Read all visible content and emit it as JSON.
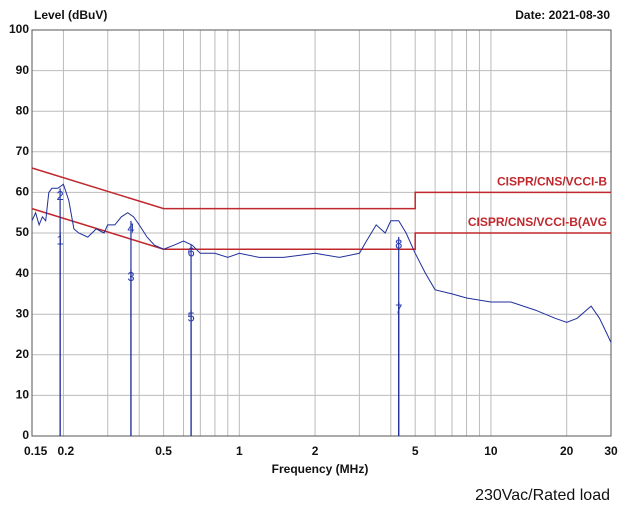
{
  "chart_data": {
    "type": "line",
    "y_label": "Level (dBuV)",
    "date": "Date: 2021-08-30",
    "x_label": "Frequency (MHz)",
    "note": "230Vac/Rated load",
    "log_x": true,
    "grid": true,
    "xlim": [
      0.15,
      30
    ],
    "ylim": [
      0,
      100
    ],
    "xticks": [
      0.15,
      0.2,
      0.5,
      1,
      2,
      5,
      10,
      20,
      30
    ],
    "xgrid": [
      0.2,
      0.3,
      0.4,
      0.5,
      0.6,
      0.7,
      0.8,
      0.9,
      1,
      2,
      3,
      4,
      5,
      6,
      7,
      8,
      9,
      10,
      20
    ],
    "yticks": [
      0,
      10,
      20,
      30,
      40,
      50,
      60,
      70,
      80,
      90,
      100
    ],
    "limits": [
      {
        "name": "CISPR/CNS/VCCI-B",
        "color": "#c0282d",
        "x": [
          0.15,
          0.5,
          5,
          5,
          30
        ],
        "values": [
          66,
          56,
          56,
          60,
          60
        ]
      },
      {
        "name": "CISPR/CNS/VCCI-B(AVG",
        "color": "#c0282d",
        "x": [
          0.15,
          0.5,
          5,
          5,
          30
        ],
        "values": [
          56,
          46,
          46,
          50,
          50
        ]
      }
    ],
    "series": [
      {
        "color": "#1f2f9c",
        "x": [
          0.15,
          0.155,
          0.16,
          0.165,
          0.17,
          0.175,
          0.18,
          0.19,
          0.2,
          0.21,
          0.22,
          0.23,
          0.25,
          0.27,
          0.29,
          0.3,
          0.32,
          0.34,
          0.36,
          0.38,
          0.4,
          0.43,
          0.46,
          0.5,
          0.55,
          0.6,
          0.65,
          0.7,
          0.8,
          0.9,
          1.0,
          1.2,
          1.5,
          2.0,
          2.5,
          3.0,
          3.2,
          3.5,
          3.8,
          4.0,
          4.3,
          4.6,
          5.0,
          5.5,
          6,
          7,
          8,
          10,
          12,
          15,
          18,
          20,
          22,
          25,
          27,
          29,
          30
        ],
        "values": [
          53,
          55,
          52,
          54,
          53,
          60,
          61,
          61,
          62,
          58,
          51,
          50,
          49,
          51,
          50,
          52,
          52,
          54,
          55,
          54,
          52,
          49,
          47,
          46,
          47,
          48,
          47,
          45,
          45,
          44,
          45,
          44,
          44,
          45,
          44,
          45,
          48,
          52,
          50,
          53,
          53,
          50,
          45,
          40,
          36,
          35,
          34,
          33,
          33,
          31,
          29,
          28,
          29,
          32,
          29,
          25,
          23
        ]
      }
    ],
    "markers": [
      {
        "label": "1",
        "freq": 0.194,
        "level": 50
      },
      {
        "label": "2",
        "freq": 0.194,
        "level": 61
      },
      {
        "label": "3",
        "freq": 0.371,
        "level": 41
      },
      {
        "label": "4",
        "freq": 0.371,
        "level": 53
      },
      {
        "label": "5",
        "freq": 0.643,
        "level": 31
      },
      {
        "label": "6",
        "freq": 0.643,
        "level": 47
      },
      {
        "label": "7",
        "freq": 4.3,
        "level": 33
      },
      {
        "label": "8",
        "freq": 4.3,
        "level": 49
      }
    ]
  }
}
